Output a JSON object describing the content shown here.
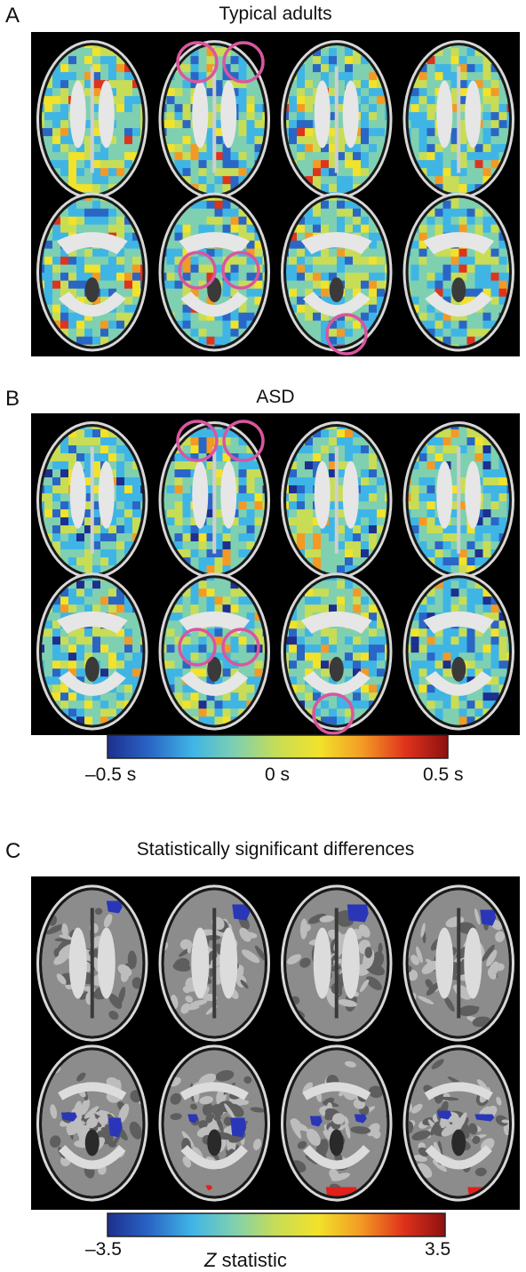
{
  "panels": {
    "a": {
      "letter": "A",
      "title": "Typical adults"
    },
    "b": {
      "letter": "B",
      "title": "ASD"
    },
    "c": {
      "letter": "C",
      "title": "Statistically significant differences"
    }
  },
  "colorbar_latency": {
    "min_label": "–0.5 s",
    "mid_label": "0 s",
    "max_label": "0.5 s"
  },
  "colorbar_z": {
    "min_label": "–3.5",
    "max_label": "3.5",
    "label_italic": "Z",
    "label_rest": " statistic"
  },
  "colors": {
    "circle": "#d9569f",
    "colormap": [
      "#1d2f8f",
      "#2a66c6",
      "#3fb5e6",
      "#7fd0b0",
      "#c8dd55",
      "#f2e22a",
      "#f39a24",
      "#e0331c",
      "#8e1010"
    ],
    "significant_negative": "#2a36b8",
    "significant_positive": "#e0201a"
  }
}
